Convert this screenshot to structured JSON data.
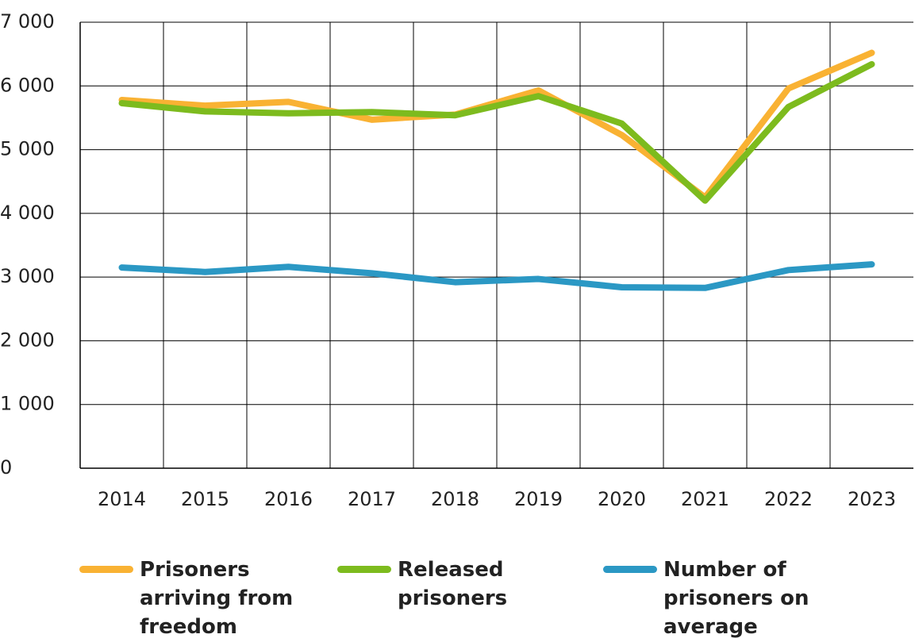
{
  "chart_data": {
    "type": "line",
    "categories": [
      "2014",
      "2015",
      "2016",
      "2017",
      "2018",
      "2019",
      "2020",
      "2021",
      "2022",
      "2023"
    ],
    "series": [
      {
        "name": "Prisoners arriving from freedom",
        "color": "#f9b233",
        "values": [
          5780,
          5690,
          5750,
          5470,
          5550,
          5930,
          5230,
          4250,
          5960,
          6520
        ]
      },
      {
        "name": "Released prisoners",
        "color": "#7dbb1e",
        "values": [
          5730,
          5600,
          5570,
          5590,
          5540,
          5840,
          5410,
          4200,
          5670,
          6340
        ]
      },
      {
        "name": "Number of prisoners on average",
        "color": "#2b98c4",
        "values": [
          3150,
          3080,
          3160,
          3060,
          2920,
          2970,
          2840,
          2830,
          3110,
          3200
        ]
      }
    ],
    "ylim": [
      0,
      7000
    ],
    "yticks": [
      0,
      {
        "value": 1000,
        "label": "1 000"
      },
      {
        "value": 2000,
        "label": "2 000"
      },
      {
        "value": 3000,
        "label": "3 000"
      },
      {
        "value": 4000,
        "label": "4 000"
      },
      {
        "value": 5000,
        "label": "5 000"
      },
      {
        "value": 6000,
        "label": "6 000"
      },
      {
        "value": 7000,
        "label": "7 000"
      }
    ],
    "grid": true
  }
}
